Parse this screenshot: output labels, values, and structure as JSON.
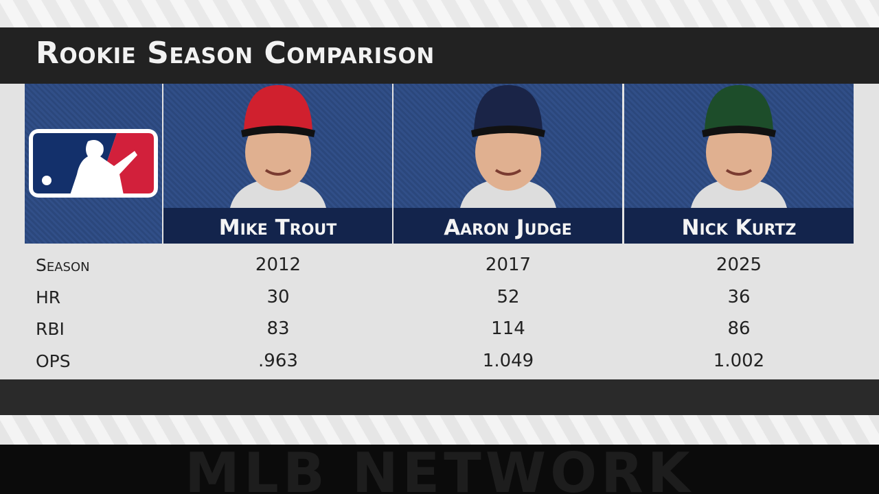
{
  "header": {
    "title": "Rookie Season Comparison"
  },
  "players": [
    "Mike Trout",
    "Aaron Judge",
    "Nick Kurtz"
  ],
  "table": {
    "rows": [
      [
        "Season",
        "2012",
        "2017",
        "2025"
      ],
      [
        "HR",
        "30",
        "52",
        "36"
      ],
      [
        "RBI",
        "83",
        "114",
        "86"
      ],
      [
        "OPS",
        ".963",
        "1.049",
        "1.002"
      ]
    ]
  },
  "footer": {
    "watermark": "MLB NETWORK"
  }
}
